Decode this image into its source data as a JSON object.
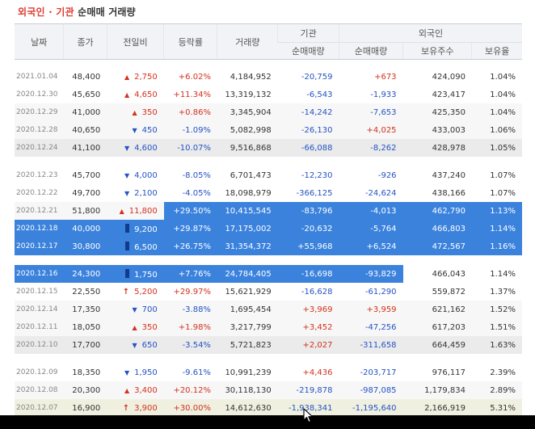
{
  "title": {
    "part1": "외국인 · 기관",
    "part2": " 순매매 거래량"
  },
  "headers": {
    "date": "날짜",
    "close": "종가",
    "change": "전일비",
    "rate": "등락률",
    "volume": "거래량",
    "inst_group": "기관",
    "foreign_group": "외국인",
    "inst_net": "순매매량",
    "foreign_net": "순매매량",
    "holdings": "보유주수",
    "hold_ratio": "보유율"
  },
  "colors": {
    "up": "#d2321e",
    "down": "#2453c4",
    "highlight": "#3b82dc"
  },
  "rows": [
    {
      "date": "2021.01.04",
      "close": "48,400",
      "change": "2,750",
      "dir": "up",
      "icon": "up-triangle-icon",
      "rate": "+6.02%",
      "volume": "4,184,952",
      "inst": "-20,759",
      "foreign": "+673",
      "holdings": "424,090",
      "ratio": "1.04%"
    },
    {
      "date": "2020.12.30",
      "close": "45,650",
      "change": "4,650",
      "dir": "up",
      "icon": "up-triangle-icon",
      "rate": "+11.34%",
      "volume": "13,319,132",
      "inst": "-6,543",
      "foreign": "-1,933",
      "holdings": "423,417",
      "ratio": "1.04%"
    },
    {
      "date": "2020.12.29",
      "close": "41,000",
      "change": "350",
      "dir": "up",
      "icon": "up-triangle-icon",
      "rate": "+0.86%",
      "volume": "3,345,904",
      "inst": "-14,242",
      "foreign": "-7,653",
      "holdings": "425,350",
      "ratio": "1.04%"
    },
    {
      "date": "2020.12.28",
      "close": "40,650",
      "change": "450",
      "dir": "down",
      "icon": "down-triangle-icon",
      "rate": "-1.09%",
      "volume": "5,082,998",
      "inst": "-26,130",
      "foreign": "+4,025",
      "holdings": "433,003",
      "ratio": "1.06%"
    },
    {
      "date": "2020.12.24",
      "close": "41,100",
      "change": "4,600",
      "dir": "down",
      "icon": "down-triangle-icon",
      "rate": "-10.07%",
      "volume": "9,516,868",
      "inst": "-66,088",
      "foreign": "-8,262",
      "holdings": "428,978",
      "ratio": "1.05%"
    },
    {
      "date": "2020.12.23",
      "close": "45,700",
      "change": "4,000",
      "dir": "down",
      "icon": "down-triangle-icon",
      "rate": "-8.05%",
      "volume": "6,701,473",
      "inst": "-12,230",
      "foreign": "-926",
      "holdings": "437,240",
      "ratio": "1.07%"
    },
    {
      "date": "2020.12.22",
      "close": "49,700",
      "change": "2,100",
      "dir": "down",
      "icon": "down-triangle-icon",
      "rate": "-4.05%",
      "volume": "18,098,979",
      "inst": "-366,125",
      "foreign": "-24,624",
      "holdings": "438,166",
      "ratio": "1.07%"
    },
    {
      "date": "2020.12.21",
      "close": "51,800",
      "change": "11,800",
      "dir": "up",
      "icon": "up-triangle-icon",
      "rate": "+29.50%",
      "volume": "10,415,545",
      "inst": "-83,796",
      "foreign": "-4,013",
      "holdings": "462,790",
      "ratio": "1.13%"
    },
    {
      "date": "2020.12.18",
      "close": "40,000",
      "change": "9,200",
      "dir": "up",
      "icon": "limit-up-bar-icon",
      "rate": "+29.87%",
      "volume": "17,175,002",
      "inst": "-20,632",
      "foreign": "-5,764",
      "holdings": "466,803",
      "ratio": "1.14%"
    },
    {
      "date": "2020.12.17",
      "close": "30,800",
      "change": "6,500",
      "dir": "up",
      "icon": "limit-up-bar-icon",
      "rate": "+26.75%",
      "volume": "31,354,372",
      "inst": "+55,968",
      "foreign": "+6,524",
      "holdings": "472,567",
      "ratio": "1.16%"
    },
    {
      "date": "2020.12.16",
      "close": "24,300",
      "change": "1,750",
      "dir": "up",
      "icon": "limit-up-bar-icon",
      "rate": "+7.76%",
      "volume": "24,784,405",
      "inst": "-16,698",
      "foreign": "-93,829",
      "holdings": "466,043",
      "ratio": "1.14%"
    },
    {
      "date": "2020.12.15",
      "close": "22,550",
      "change": "5,200",
      "dir": "up",
      "icon": "limit-up-arrow-icon",
      "rate": "+29.97%",
      "volume": "15,621,929",
      "inst": "-16,628",
      "foreign": "-61,290",
      "holdings": "559,872",
      "ratio": "1.37%"
    },
    {
      "date": "2020.12.14",
      "close": "17,350",
      "change": "700",
      "dir": "down",
      "icon": "down-triangle-icon",
      "rate": "-3.88%",
      "volume": "1,695,454",
      "inst": "+3,969",
      "foreign": "+3,959",
      "holdings": "621,162",
      "ratio": "1.52%"
    },
    {
      "date": "2020.12.11",
      "close": "18,050",
      "change": "350",
      "dir": "up",
      "icon": "up-triangle-icon",
      "rate": "+1.98%",
      "volume": "3,217,799",
      "inst": "+3,452",
      "foreign": "-47,256",
      "holdings": "617,203",
      "ratio": "1.51%"
    },
    {
      "date": "2020.12.10",
      "close": "17,700",
      "change": "650",
      "dir": "down",
      "icon": "down-triangle-icon",
      "rate": "-3.54%",
      "volume": "5,721,823",
      "inst": "+2,027",
      "foreign": "-311,658",
      "holdings": "664,459",
      "ratio": "1.63%"
    },
    {
      "date": "2020.12.09",
      "close": "18,350",
      "change": "1,950",
      "dir": "down",
      "icon": "down-triangle-icon",
      "rate": "-9.61%",
      "volume": "10,991,239",
      "inst": "+4,436",
      "foreign": "-203,717",
      "holdings": "976,117",
      "ratio": "2.39%"
    },
    {
      "date": "2020.12.08",
      "close": "20,300",
      "change": "3,400",
      "dir": "up",
      "icon": "up-triangle-icon",
      "rate": "+20.12%",
      "volume": "30,118,130",
      "inst": "-219,878",
      "foreign": "-987,085",
      "holdings": "1,179,834",
      "ratio": "2.89%"
    },
    {
      "date": "2020.12.07",
      "close": "16,900",
      "change": "3,900",
      "dir": "up",
      "icon": "limit-up-arrow-icon",
      "rate": "+30.00%",
      "volume": "14,612,630",
      "inst": "-1,938,341",
      "foreign": "-1,195,640",
      "holdings": "2,166,919",
      "ratio": "5.31%"
    }
  ]
}
